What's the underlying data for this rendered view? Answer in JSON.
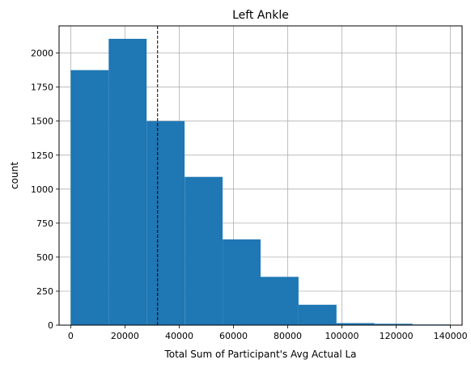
{
  "chart_data": {
    "type": "bar",
    "title": "Left Ankle",
    "xlabel": "Total Sum of Participant's Avg Actual La",
    "ylabel": "count",
    "xlim": [
      -4300,
      144300
    ],
    "ylim": [
      0,
      2200
    ],
    "xticks": [
      0,
      20000,
      40000,
      60000,
      80000,
      100000,
      120000,
      140000
    ],
    "xtick_labels": [
      "0",
      "20000",
      "40000",
      "60000",
      "80000",
      "100000",
      "120000",
      "140000"
    ],
    "yticks": [
      0,
      250,
      500,
      750,
      1000,
      1250,
      1500,
      1750,
      2000
    ],
    "ytick_labels": [
      "0",
      "250",
      "500",
      "750",
      "1000",
      "1250",
      "1500",
      "1750",
      "2000"
    ],
    "grid": true,
    "bar_color": "#1f77b4",
    "bins": [
      {
        "start": 0,
        "end": 14000,
        "count": 1875
      },
      {
        "start": 14000,
        "end": 28000,
        "count": 2105
      },
      {
        "start": 28000,
        "end": 42000,
        "count": 1500
      },
      {
        "start": 42000,
        "end": 56000,
        "count": 1090
      },
      {
        "start": 56000,
        "end": 70000,
        "count": 630
      },
      {
        "start": 70000,
        "end": 84000,
        "count": 355
      },
      {
        "start": 84000,
        "end": 98000,
        "count": 150
      },
      {
        "start": 98000,
        "end": 112000,
        "count": 15
      },
      {
        "start": 112000,
        "end": 126000,
        "count": 10
      },
      {
        "start": 126000,
        "end": 140000,
        "count": 5
      }
    ],
    "vline": {
      "x": 32000,
      "style": "dashed",
      "color": "#000000"
    }
  }
}
